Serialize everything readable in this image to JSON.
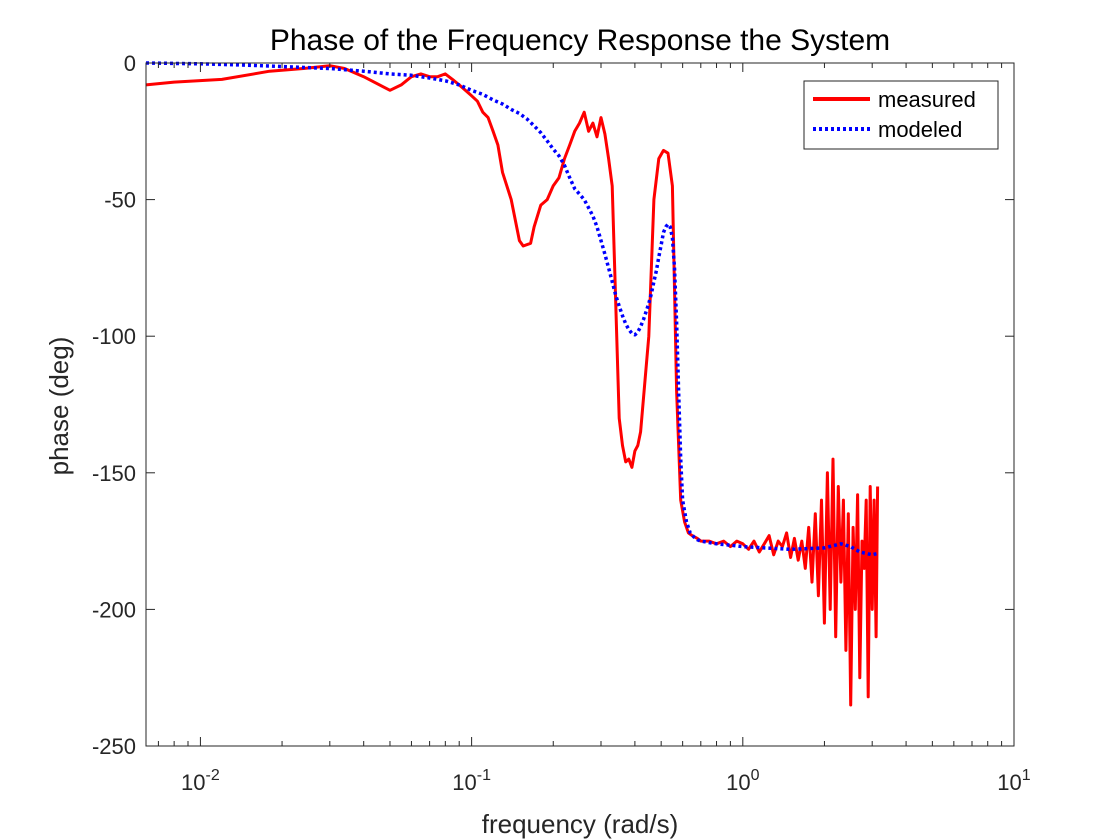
{
  "chart_data": {
    "type": "line",
    "title": "Phase of the Frequency Response the System",
    "xlabel": "frequency (rad/s)",
    "ylabel": "phase (deg)",
    "x_scale": "log",
    "xlim": [
      0.0063,
      10
    ],
    "ylim": [
      -250,
      0
    ],
    "x_ticks": [
      {
        "value": 0.01,
        "base": "10",
        "exp": "-2"
      },
      {
        "value": 0.1,
        "base": "10",
        "exp": "-1"
      },
      {
        "value": 1,
        "base": "10",
        "exp": "0"
      },
      {
        "value": 10,
        "base": "10",
        "exp": "1"
      }
    ],
    "y_ticks": [
      {
        "value": 0,
        "label": "0"
      },
      {
        "value": -50,
        "label": "-50"
      },
      {
        "value": -100,
        "label": "-100"
      },
      {
        "value": -150,
        "label": "-150"
      },
      {
        "value": -200,
        "label": "-200"
      },
      {
        "value": -250,
        "label": "-250"
      }
    ],
    "grid": false,
    "legend_position": "top-right",
    "series": [
      {
        "name": "measured",
        "color": "#ff0000",
        "style": "solid",
        "x": [
          0.0063,
          0.008,
          0.012,
          0.018,
          0.024,
          0.03,
          0.034,
          0.04,
          0.05,
          0.055,
          0.06,
          0.065,
          0.07,
          0.075,
          0.08,
          0.085,
          0.09,
          0.1,
          0.105,
          0.11,
          0.115,
          0.12,
          0.125,
          0.13,
          0.14,
          0.15,
          0.155,
          0.165,
          0.17,
          0.18,
          0.19,
          0.2,
          0.21,
          0.22,
          0.23,
          0.24,
          0.25,
          0.26,
          0.27,
          0.28,
          0.29,
          0.3,
          0.31,
          0.32,
          0.33,
          0.35,
          0.36,
          0.37,
          0.38,
          0.39,
          0.4,
          0.41,
          0.42,
          0.45,
          0.47,
          0.49,
          0.51,
          0.53,
          0.55,
          0.57,
          0.59,
          0.61,
          0.63,
          0.65,
          0.68,
          0.7,
          0.75,
          0.8,
          0.85,
          0.9,
          0.95,
          1.0,
          1.05,
          1.1,
          1.15,
          1.2,
          1.25,
          1.3,
          1.35,
          1.4,
          1.45,
          1.5,
          1.55,
          1.6,
          1.65,
          1.7,
          1.75,
          1.8,
          1.85,
          1.9,
          1.95,
          2.0,
          2.05,
          2.1,
          2.15,
          2.2,
          2.25,
          2.3,
          2.35,
          2.4,
          2.45,
          2.5,
          2.55,
          2.6,
          2.65,
          2.7,
          2.75,
          2.8,
          2.85,
          2.9,
          2.95,
          3.0,
          3.05,
          3.1,
          3.14
        ],
        "y": [
          -8,
          -7,
          -6,
          -3,
          -2,
          -1,
          -2,
          -5,
          -10,
          -8,
          -5,
          -4,
          -5,
          -5,
          -4,
          -6,
          -8,
          -12,
          -14,
          -18,
          -20,
          -25,
          -30,
          -40,
          -50,
          -65,
          -67,
          -66,
          -60,
          -52,
          -50,
          -45,
          -42,
          -35,
          -30,
          -25,
          -22,
          -18,
          -25,
          -22,
          -27,
          -20,
          -26,
          -35,
          -45,
          -130,
          -140,
          -146,
          -145,
          -148,
          -142,
          -140,
          -135,
          -100,
          -50,
          -35,
          -32,
          -33,
          -45,
          -120,
          -160,
          -168,
          -172,
          -173,
          -174,
          -175,
          -175,
          -176,
          -175,
          -177,
          -175,
          -176,
          -178,
          -175,
          -179,
          -176,
          -173,
          -180,
          -175,
          -177,
          -172,
          -181,
          -174,
          -182,
          -175,
          -185,
          -170,
          -190,
          -165,
          -195,
          -160,
          -205,
          -150,
          -200,
          -145,
          -210,
          -155,
          -190,
          -160,
          -215,
          -165,
          -235,
          -170,
          -200,
          -158,
          -225,
          -175,
          -185,
          -160,
          -232,
          -155,
          -200,
          -160,
          -210,
          -155
        ]
      },
      {
        "name": "modeled",
        "color": "#0000ff",
        "style": "dotted",
        "x": [
          0.0063,
          0.01,
          0.015,
          0.02,
          0.03,
          0.04,
          0.05,
          0.06,
          0.07,
          0.08,
          0.09,
          0.1,
          0.11,
          0.12,
          0.13,
          0.14,
          0.15,
          0.16,
          0.17,
          0.18,
          0.19,
          0.2,
          0.21,
          0.22,
          0.23,
          0.24,
          0.25,
          0.26,
          0.27,
          0.28,
          0.29,
          0.3,
          0.31,
          0.32,
          0.33,
          0.34,
          0.35,
          0.36,
          0.37,
          0.38,
          0.39,
          0.4,
          0.41,
          0.42,
          0.43,
          0.44,
          0.45,
          0.46,
          0.47,
          0.48,
          0.49,
          0.5,
          0.51,
          0.52,
          0.53,
          0.54,
          0.55,
          0.56,
          0.57,
          0.58,
          0.59,
          0.6,
          0.62,
          0.64,
          0.66,
          0.68,
          0.7,
          0.75,
          0.8,
          0.9,
          1.0,
          1.2,
          1.5,
          2.0,
          2.3,
          2.5,
          2.7,
          3.0,
          3.14
        ],
        "y": [
          0,
          -0.3,
          -0.8,
          -1.3,
          -2,
          -3,
          -4,
          -4.5,
          -5.5,
          -6.5,
          -8,
          -10,
          -11.5,
          -13.5,
          -15,
          -17,
          -18.5,
          -20.5,
          -23,
          -25.5,
          -28.5,
          -31.5,
          -34,
          -37.5,
          -42,
          -46,
          -48,
          -50,
          -53,
          -56,
          -60,
          -65,
          -70,
          -75,
          -80,
          -85,
          -89,
          -92.5,
          -95.5,
          -97.5,
          -99,
          -99.5,
          -98.5,
          -96.5,
          -94,
          -91,
          -88,
          -84.5,
          -80,
          -76,
          -71,
          -66.5,
          -62,
          -60,
          -59,
          -60,
          -64,
          -75,
          -95,
          -120,
          -145,
          -160,
          -168,
          -172,
          -173.5,
          -174.5,
          -175,
          -175.5,
          -176,
          -176.5,
          -177,
          -177.5,
          -178,
          -177.5,
          -176,
          -177,
          -179,
          -180,
          -179.5
        ]
      }
    ]
  }
}
